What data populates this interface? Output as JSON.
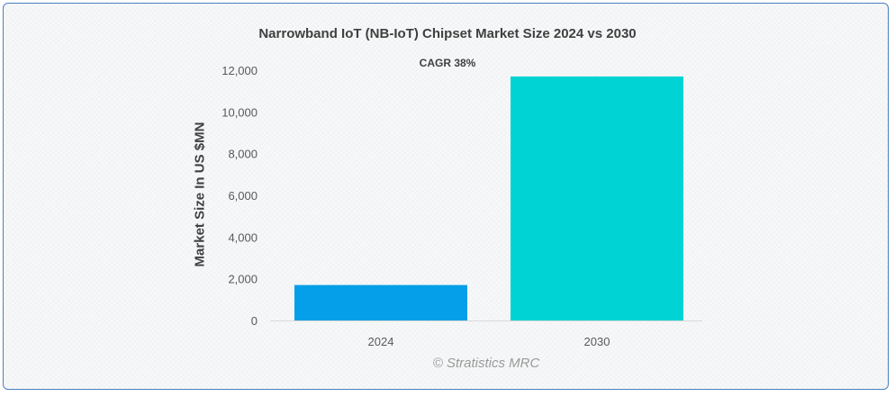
{
  "chart_data": {
    "type": "bar",
    "title": "Narrowband IoT (NB-IoT) Chipset Market Size 2024 vs 2030",
    "annotation": "CAGR 38%",
    "xlabel": "",
    "ylabel": "Market Size In US $MN",
    "categories": [
      "2024",
      "2030"
    ],
    "values": [
      1700,
      11700
    ],
    "ylim": [
      0,
      12000
    ],
    "yticks": [
      0,
      2000,
      4000,
      6000,
      8000,
      10000,
      12000
    ],
    "ytick_labels": [
      "0",
      "2,000",
      "4,000",
      "6,000",
      "8,000",
      "10,000",
      "12,000"
    ],
    "bar_colors": [
      "#049fe8",
      "#00d3d3"
    ],
    "grid": false,
    "legend": "none"
  },
  "watermark": "© Stratistics MRC"
}
